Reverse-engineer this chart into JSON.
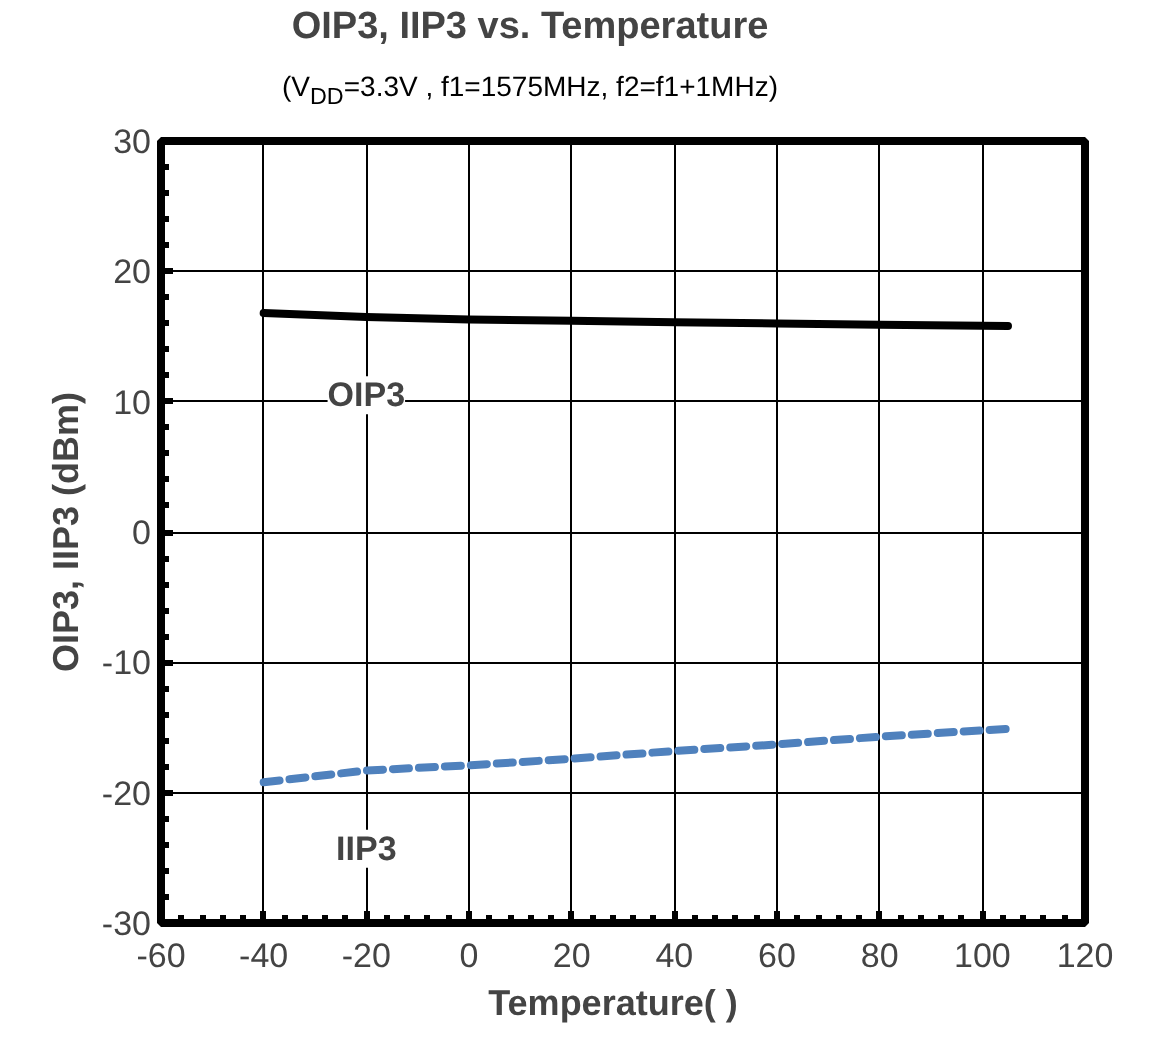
{
  "chart_data": {
    "type": "line",
    "title": "OIP3, IIP3 vs. Temperature",
    "subtitle": "(V$_{DD}$=3.3V , f1=1575MHz, f2=f1+1MHz)",
    "xlabel": "Temperature(   )",
    "ylabel": "OIP3, IIP3 (dBm)",
    "x": [
      -40,
      -20,
      0,
      20,
      40,
      60,
      80,
      105
    ],
    "series": [
      {
        "name": "OIP3",
        "color": "#000000",
        "line_style": "solid",
        "values": [
          16.8,
          16.5,
          16.3,
          16.2,
          16.1,
          16.0,
          15.9,
          15.8
        ]
      },
      {
        "name": "IIP3",
        "color": "#4f81bd",
        "line_style": "dashed",
        "values": [
          -19.2,
          -18.3,
          -17.9,
          -17.4,
          -16.8,
          -16.3,
          -15.7,
          -15.1
        ]
      }
    ],
    "xlim": [
      -60,
      120
    ],
    "xticks": [
      -60,
      -40,
      -20,
      0,
      20,
      40,
      60,
      80,
      100,
      120
    ],
    "ylim": [
      -30,
      30
    ],
    "yticks": [
      -30,
      -20,
      -10,
      0,
      10,
      20,
      30
    ],
    "grid": true,
    "marker": "none"
  }
}
